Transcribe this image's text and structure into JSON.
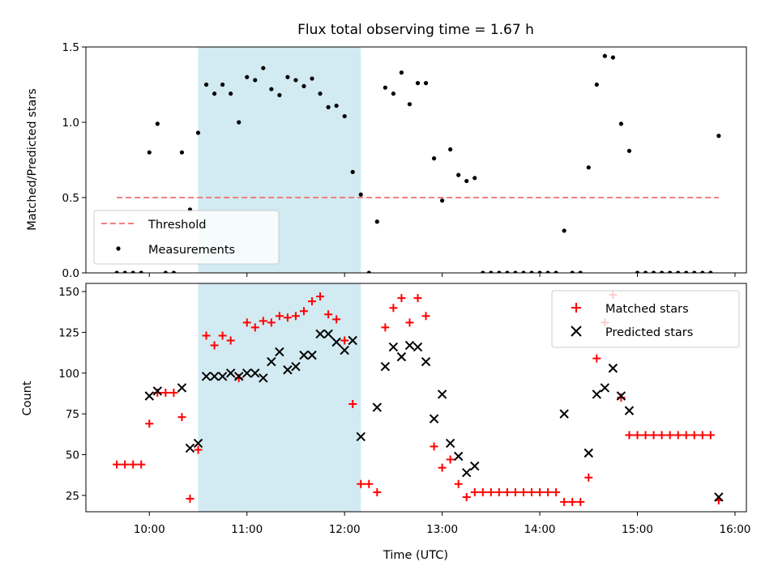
{
  "title": "Flux total observing time = 1.67 h",
  "colors": {
    "threshold": "#f08080",
    "measurements": "#000000",
    "matched": "#ff0000",
    "predicted": "#000000",
    "shade": "#add8e6"
  },
  "chart_data": [
    {
      "type": "scatter",
      "ylabel": "Matched/Predicted stars",
      "xlim": [
        "09:21",
        "16:07"
      ],
      "ylim": [
        0,
        1.5
      ],
      "yticks": [
        "0.0",
        "0.5",
        "1.0",
        "1.5"
      ],
      "legend_position": "lower-left",
      "shaded_interval": [
        "10:30",
        "12:10"
      ],
      "threshold": {
        "name": "Threshold",
        "value": 0.5,
        "x_range": [
          "09:40",
          "15:50"
        ]
      },
      "series": [
        {
          "name": "Measurements",
          "points": [
            [
              "09:40",
              0
            ],
            [
              "09:45",
              0
            ],
            [
              "09:50",
              0
            ],
            [
              "09:55",
              0
            ],
            [
              "10:00",
              0.8
            ],
            [
              "10:05",
              0.99
            ],
            [
              "10:10",
              0
            ],
            [
              "10:15",
              0
            ],
            [
              "10:20",
              0.8
            ],
            [
              "10:25",
              0.42
            ],
            [
              "10:30",
              0.93
            ],
            [
              "10:35",
              1.25
            ],
            [
              "10:40",
              1.19
            ],
            [
              "10:45",
              1.25
            ],
            [
              "10:50",
              1.19
            ],
            [
              "10:55",
              1.0
            ],
            [
              "11:00",
              1.3
            ],
            [
              "11:05",
              1.28
            ],
            [
              "11:10",
              1.36
            ],
            [
              "11:15",
              1.22
            ],
            [
              "11:20",
              1.18
            ],
            [
              "11:25",
              1.3
            ],
            [
              "11:30",
              1.28
            ],
            [
              "11:35",
              1.24
            ],
            [
              "11:40",
              1.29
            ],
            [
              "11:45",
              1.19
            ],
            [
              "11:50",
              1.1
            ],
            [
              "11:55",
              1.11
            ],
            [
              "12:00",
              1.04
            ],
            [
              "12:05",
              0.67
            ],
            [
              "12:10",
              0.52
            ],
            [
              "12:15",
              0
            ],
            [
              "12:20",
              0.34
            ],
            [
              "12:25",
              1.23
            ],
            [
              "12:30",
              1.19
            ],
            [
              "12:35",
              1.33
            ],
            [
              "12:40",
              1.12
            ],
            [
              "12:45",
              1.26
            ],
            [
              "12:50",
              1.26
            ],
            [
              "12:55",
              0.76
            ],
            [
              "13:00",
              0.48
            ],
            [
              "13:05",
              0.82
            ],
            [
              "13:10",
              0.65
            ],
            [
              "13:15",
              0.61
            ],
            [
              "13:20",
              0.63
            ],
            [
              "13:25",
              0
            ],
            [
              "13:30",
              0
            ],
            [
              "13:35",
              0
            ],
            [
              "13:40",
              0
            ],
            [
              "13:45",
              0
            ],
            [
              "13:50",
              0
            ],
            [
              "13:55",
              0
            ],
            [
              "14:00",
              0
            ],
            [
              "14:05",
              0
            ],
            [
              "14:10",
              0
            ],
            [
              "14:15",
              0.28
            ],
            [
              "14:20",
              0
            ],
            [
              "14:25",
              0
            ],
            [
              "14:30",
              0.7
            ],
            [
              "14:35",
              1.25
            ],
            [
              "14:40",
              1.44
            ],
            [
              "14:45",
              1.43
            ],
            [
              "14:50",
              0.99
            ],
            [
              "14:55",
              0.81
            ],
            [
              "15:00",
              0
            ],
            [
              "15:05",
              0
            ],
            [
              "15:10",
              0
            ],
            [
              "15:15",
              0
            ],
            [
              "15:20",
              0
            ],
            [
              "15:25",
              0
            ],
            [
              "15:30",
              0
            ],
            [
              "15:35",
              0
            ],
            [
              "15:40",
              0
            ],
            [
              "15:45",
              0
            ],
            [
              "15:50",
              0.91
            ]
          ]
        }
      ]
    },
    {
      "type": "scatter",
      "ylabel": "Count",
      "xlabel": "Time (UTC)",
      "xlim": [
        "09:21",
        "16:07"
      ],
      "ylim": [
        15,
        155
      ],
      "yticks": [
        "25",
        "50",
        "75",
        "100",
        "125",
        "150"
      ],
      "xticks": [
        "10:00",
        "11:00",
        "12:00",
        "13:00",
        "14:00",
        "15:00",
        "16:00"
      ],
      "legend_position": "upper-right",
      "shaded_interval": [
        "10:30",
        "12:10"
      ],
      "series": [
        {
          "name": "Matched stars",
          "points": [
            [
              "09:40",
              44
            ],
            [
              "09:45",
              44
            ],
            [
              "09:50",
              44
            ],
            [
              "09:55",
              44
            ],
            [
              "10:00",
              69
            ],
            [
              "10:05",
              88
            ],
            [
              "10:10",
              88
            ],
            [
              "10:15",
              88
            ],
            [
              "10:20",
              73
            ],
            [
              "10:25",
              23
            ],
            [
              "10:30",
              53
            ],
            [
              "10:35",
              123
            ],
            [
              "10:40",
              117
            ],
            [
              "10:45",
              123
            ],
            [
              "10:50",
              120
            ],
            [
              "10:55",
              97
            ],
            [
              "11:00",
              131
            ],
            [
              "11:05",
              128
            ],
            [
              "11:10",
              132
            ],
            [
              "11:15",
              131
            ],
            [
              "11:20",
              135
            ],
            [
              "11:25",
              134
            ],
            [
              "11:30",
              135
            ],
            [
              "11:35",
              138
            ],
            [
              "11:40",
              144
            ],
            [
              "11:45",
              147
            ],
            [
              "11:50",
              136
            ],
            [
              "11:55",
              133
            ],
            [
              "12:00",
              120
            ],
            [
              "12:05",
              81
            ],
            [
              "12:10",
              32
            ],
            [
              "12:15",
              32
            ],
            [
              "12:20",
              27
            ],
            [
              "12:25",
              128
            ],
            [
              "12:30",
              140
            ],
            [
              "12:35",
              146
            ],
            [
              "12:40",
              131
            ],
            [
              "12:45",
              146
            ],
            [
              "12:50",
              135
            ],
            [
              "12:55",
              55
            ],
            [
              "13:00",
              42
            ],
            [
              "13:05",
              47
            ],
            [
              "13:10",
              32
            ],
            [
              "13:15",
              24
            ],
            [
              "13:20",
              27
            ],
            [
              "13:25",
              27
            ],
            [
              "13:30",
              27
            ],
            [
              "13:35",
              27
            ],
            [
              "13:40",
              27
            ],
            [
              "13:45",
              27
            ],
            [
              "13:50",
              27
            ],
            [
              "13:55",
              27
            ],
            [
              "14:00",
              27
            ],
            [
              "14:05",
              27
            ],
            [
              "14:10",
              27
            ],
            [
              "14:15",
              21
            ],
            [
              "14:20",
              21
            ],
            [
              "14:25",
              21
            ],
            [
              "14:30",
              36
            ],
            [
              "14:35",
              109
            ],
            [
              "14:40",
              131
            ],
            [
              "14:45",
              148
            ],
            [
              "14:50",
              85
            ],
            [
              "14:55",
              62
            ],
            [
              "15:00",
              62
            ],
            [
              "15:05",
              62
            ],
            [
              "15:10",
              62
            ],
            [
              "15:15",
              62
            ],
            [
              "15:20",
              62
            ],
            [
              "15:25",
              62
            ],
            [
              "15:30",
              62
            ],
            [
              "15:35",
              62
            ],
            [
              "15:40",
              62
            ],
            [
              "15:45",
              62
            ],
            [
              "15:50",
              22
            ]
          ]
        },
        {
          "name": "Predicted stars",
          "points": [
            [
              "10:00",
              86
            ],
            [
              "10:05",
              89
            ],
            [
              "10:20",
              91
            ],
            [
              "10:25",
              54
            ],
            [
              "10:30",
              57
            ],
            [
              "10:35",
              98
            ],
            [
              "10:40",
              98
            ],
            [
              "10:45",
              98
            ],
            [
              "10:50",
              100
            ],
            [
              "10:55",
              98
            ],
            [
              "11:00",
              100
            ],
            [
              "11:05",
              100
            ],
            [
              "11:10",
              97
            ],
            [
              "11:15",
              107
            ],
            [
              "11:20",
              113
            ],
            [
              "11:25",
              102
            ],
            [
              "11:30",
              104
            ],
            [
              "11:35",
              111
            ],
            [
              "11:40",
              111
            ],
            [
              "11:45",
              124
            ],
            [
              "11:50",
              124
            ],
            [
              "11:55",
              119
            ],
            [
              "12:00",
              114
            ],
            [
              "12:05",
              120
            ],
            [
              "12:10",
              61
            ],
            [
              "12:20",
              79
            ],
            [
              "12:25",
              104
            ],
            [
              "12:30",
              116
            ],
            [
              "12:35",
              110
            ],
            [
              "12:40",
              117
            ],
            [
              "12:45",
              116
            ],
            [
              "12:50",
              107
            ],
            [
              "12:55",
              72
            ],
            [
              "13:00",
              87
            ],
            [
              "13:05",
              57
            ],
            [
              "13:10",
              49
            ],
            [
              "13:15",
              39
            ],
            [
              "13:20",
              43
            ],
            [
              "14:15",
              75
            ],
            [
              "14:30",
              51
            ],
            [
              "14:35",
              87
            ],
            [
              "14:40",
              91
            ],
            [
              "14:45",
              103
            ],
            [
              "14:50",
              86
            ],
            [
              "14:55",
              77
            ],
            [
              "15:50",
              24
            ]
          ]
        }
      ]
    }
  ]
}
